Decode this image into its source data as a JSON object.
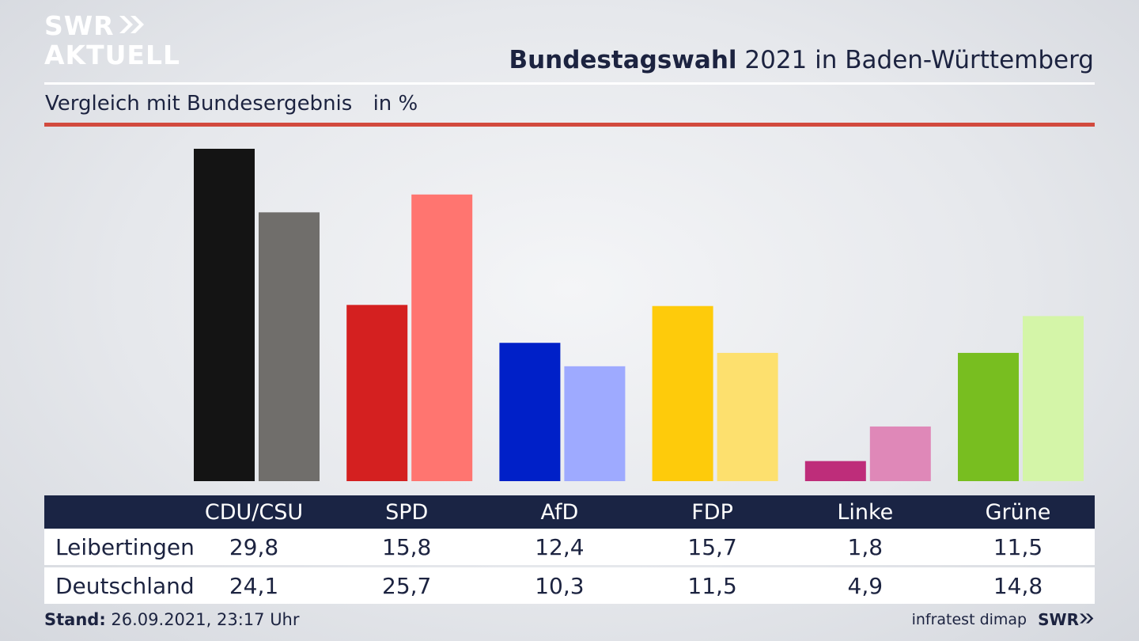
{
  "logo": {
    "line1": "SWR",
    "line2": "AKTUELL"
  },
  "header": {
    "title_bold": "Bundestagswahl",
    "title_rest": "2021 in Baden-Württemberg",
    "subtitle": "Vergleich mit Bundesergebnis",
    "unit": "in %"
  },
  "colors": {
    "accent_red": "#d24a3e",
    "table_header": "#1a2444"
  },
  "chart_data": {
    "type": "bar",
    "categories": [
      "CDU/CSU",
      "SPD",
      "AfD",
      "FDP",
      "Linke",
      "Grüne"
    ],
    "series": [
      {
        "name": "Leibertingen",
        "values": [
          29.8,
          15.8,
          12.4,
          15.7,
          1.8,
          11.5
        ],
        "colors": [
          "#141414",
          "#d42020",
          "#0020c8",
          "#fecb0b",
          "#be2d7a",
          "#78be20"
        ]
      },
      {
        "name": "Deutschland",
        "values": [
          24.1,
          25.7,
          10.3,
          11.5,
          4.9,
          14.8
        ],
        "colors": [
          "#706e6b",
          "#ff7570",
          "#9eaaff",
          "#fde06e",
          "#df88b8",
          "#d4f5a8"
        ]
      }
    ],
    "ylim": [
      0,
      29.8
    ],
    "grid": false
  },
  "table": {
    "rows": [
      {
        "label": "Leibertingen",
        "values": [
          "29,8",
          "15,8",
          "12,4",
          "15,7",
          "1,8",
          "11,5"
        ]
      },
      {
        "label": "Deutschland",
        "values": [
          "24,1",
          "25,7",
          "10,3",
          "11,5",
          "4,9",
          "14,8"
        ]
      }
    ]
  },
  "footer": {
    "stand_label": "Stand:",
    "stand_value": "26.09.2021, 23:17 Uhr",
    "source": "infratest dimap",
    "brand": "SWR"
  }
}
